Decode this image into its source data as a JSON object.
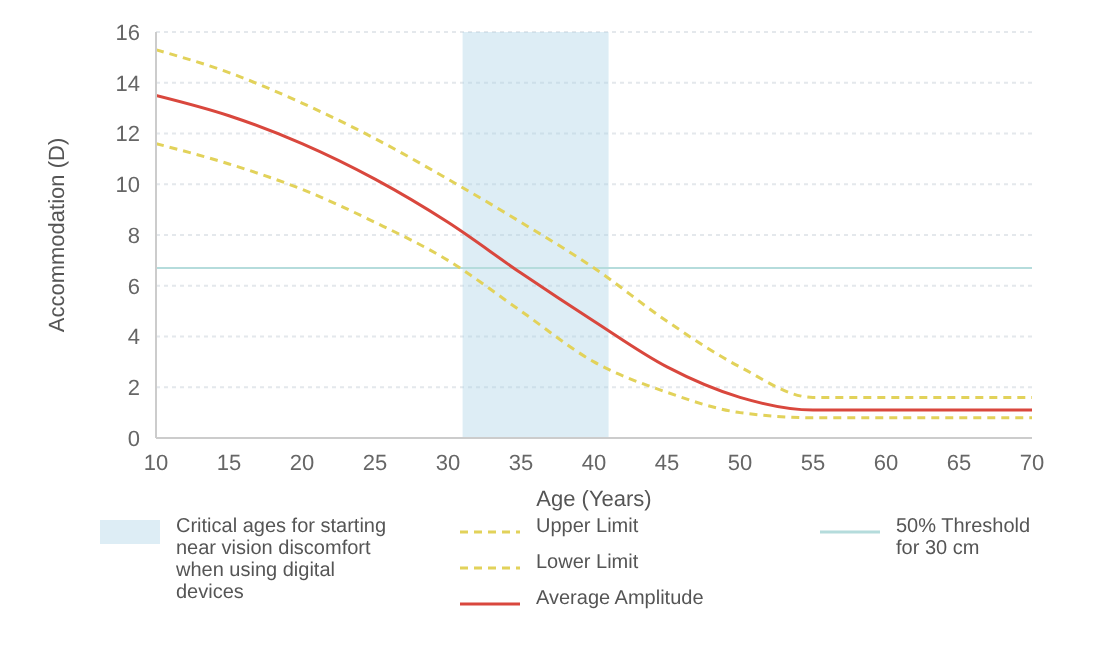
{
  "chart_data": {
    "type": "line",
    "xlabel": "Age (Years)",
    "ylabel": "Accommodation (D)",
    "x": [
      10,
      15,
      20,
      25,
      30,
      35,
      40,
      45,
      50,
      55,
      60,
      65,
      70
    ],
    "series": [
      {
        "name": "Upper Limit",
        "color": "#e2d25a",
        "line_style": "dashed",
        "values": [
          15.3,
          14.4,
          13.2,
          11.8,
          10.2,
          8.5,
          6.7,
          4.6,
          2.8,
          1.6,
          1.6,
          1.6,
          1.6
        ]
      },
      {
        "name": "Lower Limit",
        "color": "#e2d25a",
        "line_style": "dashed",
        "values": [
          11.6,
          10.8,
          9.8,
          8.5,
          7.0,
          5.0,
          3.0,
          1.8,
          1.0,
          0.8,
          0.8,
          0.8,
          0.8
        ]
      },
      {
        "name": "Average Amplitude",
        "color": "#d9473d",
        "line_style": "solid",
        "values": [
          13.5,
          12.7,
          11.6,
          10.2,
          8.5,
          6.5,
          4.6,
          2.8,
          1.6,
          1.1,
          1.1,
          1.1,
          1.1
        ]
      }
    ],
    "bands": [
      {
        "axis": "x",
        "from": 31,
        "to": 41,
        "label": "Critical ages for starting near vision discomfort when using digital devices",
        "color": "#a9d3e6"
      }
    ],
    "ref_lines": [
      {
        "axis": "y",
        "value": 6.7,
        "label": "50% Threshold for 30 cm",
        "color": "#b5dcdc"
      }
    ],
    "xlim": [
      10,
      70
    ],
    "xticks": [
      10,
      15,
      20,
      25,
      30,
      35,
      40,
      45,
      50,
      55,
      60,
      65,
      70
    ],
    "ylim": [
      0,
      16
    ],
    "yticks": [
      0,
      2,
      4,
      6,
      8,
      10,
      12,
      14,
      16
    ],
    "grid": "y",
    "marker": "none",
    "legend": "bottom"
  }
}
